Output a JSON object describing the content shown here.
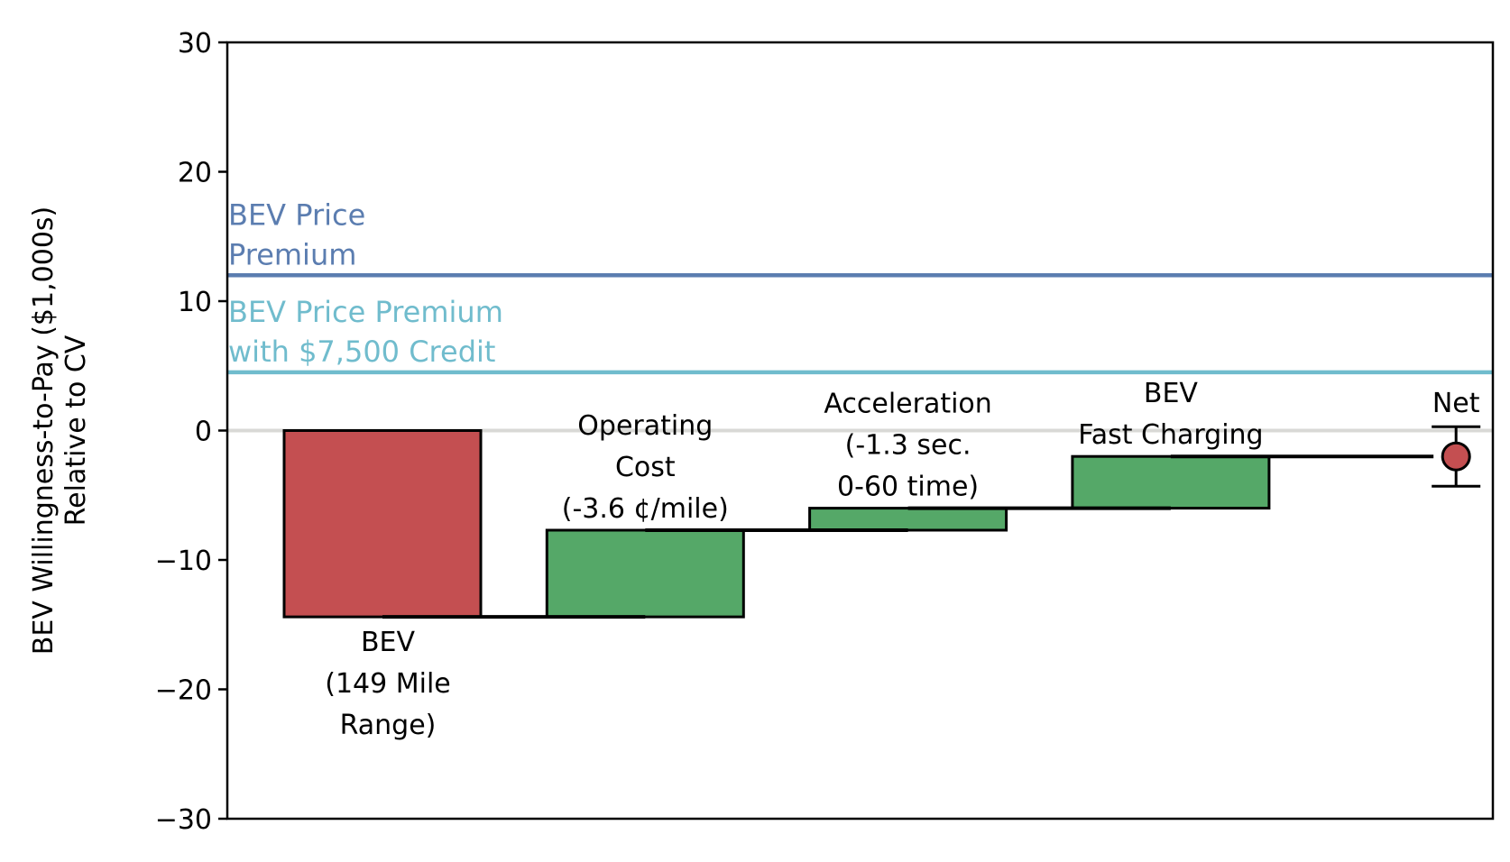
{
  "chart_data": {
    "type": "bar",
    "ylabel": [
      "BEV Willingness-to-Pay ($1,000s)",
      "Relative to CV"
    ],
    "ylim": [
      -30,
      30
    ],
    "yticks": [
      30,
      20,
      10,
      0,
      -10,
      -20,
      -30
    ],
    "ytick_labels": [
      "30",
      "20",
      "10",
      "0",
      "−10",
      "−20",
      "−30"
    ],
    "grid": false,
    "zero_line_color": "#d9d9d6",
    "reference_lines": [
      {
        "label": [
          "BEV Price",
          "Premium"
        ],
        "value": 12,
        "color": "#5b7db0"
      },
      {
        "label": [
          "BEV Price Premium",
          "with $7,500 Credit"
        ],
        "value": 4.5,
        "color": "#70bccd"
      }
    ],
    "bars": [
      {
        "label": [
          "BEV",
          "(149 Mile",
          "Range)"
        ],
        "start": 0,
        "end": -14.4,
        "color": "#c44f51",
        "label_position": "below"
      },
      {
        "label": [
          "Operating",
          "Cost",
          "(-3.6 ¢/mile)"
        ],
        "start": -14.4,
        "end": -7.7,
        "color": "#55a868",
        "label_position": "above"
      },
      {
        "label": [
          "Acceleration",
          "(-1.3 sec.",
          "0-60 time)"
        ],
        "start": -7.7,
        "end": -6.0,
        "color": "#55a868",
        "label_position": "above"
      },
      {
        "label": [
          "BEV",
          "Fast Charging"
        ],
        "start": -6.0,
        "end": -2.0,
        "color": "#55a868",
        "label_position": "above"
      }
    ],
    "net": {
      "label": "Net",
      "value": -2.0,
      "error_low": -4.3,
      "error_high": 0.3,
      "color": "#c44f51"
    }
  }
}
